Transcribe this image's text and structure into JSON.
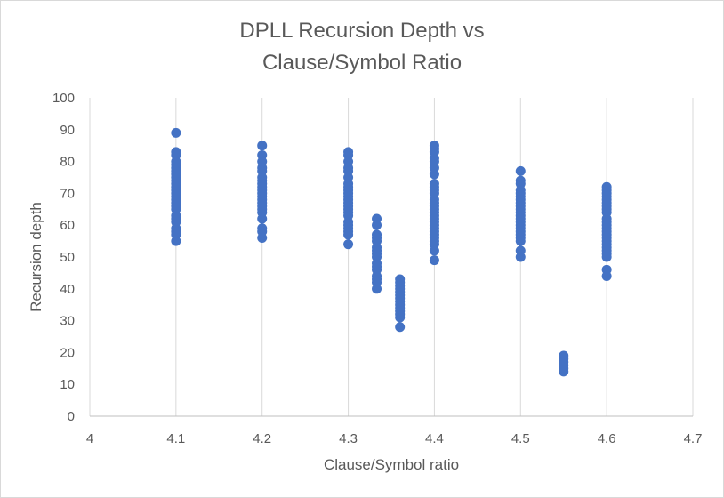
{
  "chart_data": {
    "type": "scatter",
    "title_line1": "DPLL Recursion Depth vs",
    "title_line2": "Clause/Symbol Ratio",
    "xlabel": "Clause/Symbol ratio",
    "ylabel": "Recursion depth",
    "xlim": [
      4,
      4.7
    ],
    "ylim": [
      0,
      100
    ],
    "x_ticks": [
      "4",
      "4.1",
      "4.2",
      "4.3",
      "4.4",
      "4.5",
      "4.6",
      "4.7"
    ],
    "y_ticks": [
      "0",
      "10",
      "20",
      "30",
      "40",
      "50",
      "60",
      "70",
      "80",
      "90",
      "100"
    ],
    "grid": "vertical",
    "legend": "none",
    "color": "#4472C4",
    "points": [
      {
        "x": 4.1,
        "y": 89
      },
      {
        "x": 4.1,
        "y": 83
      },
      {
        "x": 4.1,
        "y": 82
      },
      {
        "x": 4.1,
        "y": 80
      },
      {
        "x": 4.1,
        "y": 79
      },
      {
        "x": 4.1,
        "y": 78
      },
      {
        "x": 4.1,
        "y": 77
      },
      {
        "x": 4.1,
        "y": 76
      },
      {
        "x": 4.1,
        "y": 75
      },
      {
        "x": 4.1,
        "y": 74
      },
      {
        "x": 4.1,
        "y": 73
      },
      {
        "x": 4.1,
        "y": 72
      },
      {
        "x": 4.1,
        "y": 71
      },
      {
        "x": 4.1,
        "y": 70
      },
      {
        "x": 4.1,
        "y": 69
      },
      {
        "x": 4.1,
        "y": 68
      },
      {
        "x": 4.1,
        "y": 67
      },
      {
        "x": 4.1,
        "y": 66
      },
      {
        "x": 4.1,
        "y": 65
      },
      {
        "x": 4.1,
        "y": 63
      },
      {
        "x": 4.1,
        "y": 62
      },
      {
        "x": 4.1,
        "y": 61
      },
      {
        "x": 4.1,
        "y": 59
      },
      {
        "x": 4.1,
        "y": 58
      },
      {
        "x": 4.1,
        "y": 57
      },
      {
        "x": 4.1,
        "y": 55
      },
      {
        "x": 4.2,
        "y": 85
      },
      {
        "x": 4.2,
        "y": 82
      },
      {
        "x": 4.2,
        "y": 80
      },
      {
        "x": 4.2,
        "y": 78
      },
      {
        "x": 4.2,
        "y": 77
      },
      {
        "x": 4.2,
        "y": 75
      },
      {
        "x": 4.2,
        "y": 74
      },
      {
        "x": 4.2,
        "y": 73
      },
      {
        "x": 4.2,
        "y": 72
      },
      {
        "x": 4.2,
        "y": 71
      },
      {
        "x": 4.2,
        "y": 70
      },
      {
        "x": 4.2,
        "y": 69
      },
      {
        "x": 4.2,
        "y": 68
      },
      {
        "x": 4.2,
        "y": 67
      },
      {
        "x": 4.2,
        "y": 66
      },
      {
        "x": 4.2,
        "y": 65
      },
      {
        "x": 4.2,
        "y": 64
      },
      {
        "x": 4.2,
        "y": 62
      },
      {
        "x": 4.2,
        "y": 59
      },
      {
        "x": 4.2,
        "y": 58
      },
      {
        "x": 4.2,
        "y": 56
      },
      {
        "x": 4.3,
        "y": 83
      },
      {
        "x": 4.3,
        "y": 82
      },
      {
        "x": 4.3,
        "y": 80
      },
      {
        "x": 4.3,
        "y": 78
      },
      {
        "x": 4.3,
        "y": 77
      },
      {
        "x": 4.3,
        "y": 75
      },
      {
        "x": 4.3,
        "y": 73
      },
      {
        "x": 4.3,
        "y": 72
      },
      {
        "x": 4.3,
        "y": 71
      },
      {
        "x": 4.3,
        "y": 70
      },
      {
        "x": 4.3,
        "y": 69
      },
      {
        "x": 4.3,
        "y": 68
      },
      {
        "x": 4.3,
        "y": 67
      },
      {
        "x": 4.3,
        "y": 66
      },
      {
        "x": 4.3,
        "y": 65
      },
      {
        "x": 4.3,
        "y": 64
      },
      {
        "x": 4.3,
        "y": 63
      },
      {
        "x": 4.3,
        "y": 61
      },
      {
        "x": 4.3,
        "y": 60
      },
      {
        "x": 4.3,
        "y": 59
      },
      {
        "x": 4.3,
        "y": 58
      },
      {
        "x": 4.3,
        "y": 57
      },
      {
        "x": 4.3,
        "y": 54
      },
      {
        "x": 4.333,
        "y": 62
      },
      {
        "x": 4.333,
        "y": 60
      },
      {
        "x": 4.333,
        "y": 57
      },
      {
        "x": 4.333,
        "y": 56
      },
      {
        "x": 4.333,
        "y": 55
      },
      {
        "x": 4.333,
        "y": 53
      },
      {
        "x": 4.333,
        "y": 52
      },
      {
        "x": 4.333,
        "y": 51
      },
      {
        "x": 4.333,
        "y": 50
      },
      {
        "x": 4.333,
        "y": 48
      },
      {
        "x": 4.333,
        "y": 47
      },
      {
        "x": 4.333,
        "y": 46
      },
      {
        "x": 4.333,
        "y": 44
      },
      {
        "x": 4.333,
        "y": 43
      },
      {
        "x": 4.333,
        "y": 42
      },
      {
        "x": 4.333,
        "y": 40
      },
      {
        "x": 4.36,
        "y": 43
      },
      {
        "x": 4.36,
        "y": 42
      },
      {
        "x": 4.36,
        "y": 41
      },
      {
        "x": 4.36,
        "y": 40
      },
      {
        "x": 4.36,
        "y": 39
      },
      {
        "x": 4.36,
        "y": 38
      },
      {
        "x": 4.36,
        "y": 37
      },
      {
        "x": 4.36,
        "y": 36
      },
      {
        "x": 4.36,
        "y": 35
      },
      {
        "x": 4.36,
        "y": 34
      },
      {
        "x": 4.36,
        "y": 33
      },
      {
        "x": 4.36,
        "y": 32
      },
      {
        "x": 4.36,
        "y": 31
      },
      {
        "x": 4.36,
        "y": 28
      },
      {
        "x": 4.4,
        "y": 85
      },
      {
        "x": 4.4,
        "y": 84
      },
      {
        "x": 4.4,
        "y": 83
      },
      {
        "x": 4.4,
        "y": 81
      },
      {
        "x": 4.4,
        "y": 80
      },
      {
        "x": 4.4,
        "y": 78
      },
      {
        "x": 4.4,
        "y": 76
      },
      {
        "x": 4.4,
        "y": 73
      },
      {
        "x": 4.4,
        "y": 72
      },
      {
        "x": 4.4,
        "y": 71
      },
      {
        "x": 4.4,
        "y": 70
      },
      {
        "x": 4.4,
        "y": 68
      },
      {
        "x": 4.4,
        "y": 67
      },
      {
        "x": 4.4,
        "y": 66
      },
      {
        "x": 4.4,
        "y": 65
      },
      {
        "x": 4.4,
        "y": 64
      },
      {
        "x": 4.4,
        "y": 63
      },
      {
        "x": 4.4,
        "y": 62
      },
      {
        "x": 4.4,
        "y": 61
      },
      {
        "x": 4.4,
        "y": 60
      },
      {
        "x": 4.4,
        "y": 59
      },
      {
        "x": 4.4,
        "y": 58
      },
      {
        "x": 4.4,
        "y": 57
      },
      {
        "x": 4.4,
        "y": 56
      },
      {
        "x": 4.4,
        "y": 55
      },
      {
        "x": 4.4,
        "y": 54
      },
      {
        "x": 4.4,
        "y": 52
      },
      {
        "x": 4.4,
        "y": 49
      },
      {
        "x": 4.5,
        "y": 77
      },
      {
        "x": 4.5,
        "y": 74
      },
      {
        "x": 4.5,
        "y": 73
      },
      {
        "x": 4.5,
        "y": 71
      },
      {
        "x": 4.5,
        "y": 70
      },
      {
        "x": 4.5,
        "y": 69
      },
      {
        "x": 4.5,
        "y": 68
      },
      {
        "x": 4.5,
        "y": 67
      },
      {
        "x": 4.5,
        "y": 66
      },
      {
        "x": 4.5,
        "y": 65
      },
      {
        "x": 4.5,
        "y": 64
      },
      {
        "x": 4.5,
        "y": 63
      },
      {
        "x": 4.5,
        "y": 62
      },
      {
        "x": 4.5,
        "y": 61
      },
      {
        "x": 4.5,
        "y": 60
      },
      {
        "x": 4.5,
        "y": 59
      },
      {
        "x": 4.5,
        "y": 58
      },
      {
        "x": 4.5,
        "y": 57
      },
      {
        "x": 4.5,
        "y": 56
      },
      {
        "x": 4.5,
        "y": 55
      },
      {
        "x": 4.5,
        "y": 52
      },
      {
        "x": 4.5,
        "y": 50
      },
      {
        "x": 4.55,
        "y": 19
      },
      {
        "x": 4.55,
        "y": 18
      },
      {
        "x": 4.55,
        "y": 17
      },
      {
        "x": 4.55,
        "y": 16
      },
      {
        "x": 4.55,
        "y": 15
      },
      {
        "x": 4.55,
        "y": 14
      },
      {
        "x": 4.6,
        "y": 72
      },
      {
        "x": 4.6,
        "y": 71
      },
      {
        "x": 4.6,
        "y": 70
      },
      {
        "x": 4.6,
        "y": 69
      },
      {
        "x": 4.6,
        "y": 68
      },
      {
        "x": 4.6,
        "y": 67
      },
      {
        "x": 4.6,
        "y": 66
      },
      {
        "x": 4.6,
        "y": 65
      },
      {
        "x": 4.6,
        "y": 64
      },
      {
        "x": 4.6,
        "y": 62
      },
      {
        "x": 4.6,
        "y": 61
      },
      {
        "x": 4.6,
        "y": 60
      },
      {
        "x": 4.6,
        "y": 59
      },
      {
        "x": 4.6,
        "y": 58
      },
      {
        "x": 4.6,
        "y": 57
      },
      {
        "x": 4.6,
        "y": 56
      },
      {
        "x": 4.6,
        "y": 55
      },
      {
        "x": 4.6,
        "y": 54
      },
      {
        "x": 4.6,
        "y": 53
      },
      {
        "x": 4.6,
        "y": 52
      },
      {
        "x": 4.6,
        "y": 51
      },
      {
        "x": 4.6,
        "y": 50
      },
      {
        "x": 4.6,
        "y": 46
      },
      {
        "x": 4.6,
        "y": 44
      }
    ]
  }
}
